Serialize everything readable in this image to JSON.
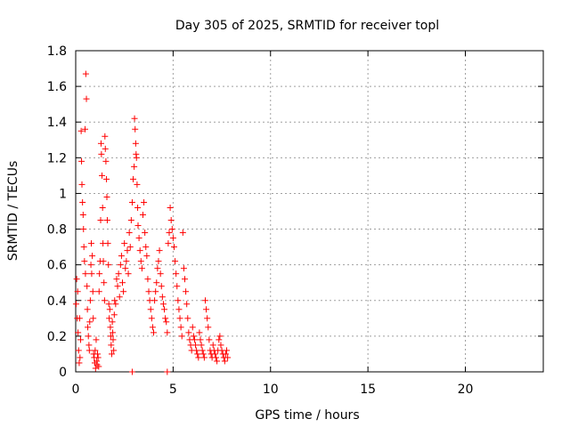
{
  "chart_data": {
    "type": "scatter",
    "title": "Day 305 of 2025, SRMTID for receiver topl",
    "xlabel": "GPS time / hours",
    "ylabel": "SRMTID / TECUs",
    "xlim": [
      0,
      24
    ],
    "ylim": [
      0,
      1.8
    ],
    "xticks": [
      0,
      5,
      10,
      15,
      20
    ],
    "xtick_labels": [
      "0",
      "5",
      "10",
      "15",
      "20"
    ],
    "yticks": [
      0,
      0.2,
      0.4,
      0.6,
      0.8,
      1,
      1.2,
      1.4,
      1.6,
      1.8
    ],
    "ytick_labels": [
      "0",
      "0.2",
      "0.4",
      "0.6",
      "0.8",
      "1",
      "1.2",
      "1.4",
      "1.6",
      "1.8"
    ],
    "grid": true,
    "marker": "plus",
    "color": "#ff0000",
    "series": [
      {
        "name": "SRMTID",
        "points": [
          [
            0.02,
            0.38
          ],
          [
            0.05,
            0.52
          ],
          [
            0.08,
            0.3
          ],
          [
            0.1,
            0.45
          ],
          [
            0.12,
            0.22
          ],
          [
            0.15,
            0.12
          ],
          [
            0.18,
            0.05
          ],
          [
            0.2,
            0.3
          ],
          [
            0.22,
            0.08
          ],
          [
            0.25,
            0.18
          ],
          [
            0.28,
            1.35
          ],
          [
            0.3,
            1.18
          ],
          [
            0.32,
            1.05
          ],
          [
            0.35,
            0.95
          ],
          [
            0.38,
            0.88
          ],
          [
            0.4,
            0.8
          ],
          [
            0.42,
            0.7
          ],
          [
            0.45,
            0.62
          ],
          [
            0.48,
            1.36
          ],
          [
            0.5,
            0.55
          ],
          [
            0.52,
            1.67
          ],
          [
            0.55,
            1.53
          ],
          [
            0.58,
            0.48
          ],
          [
            0.6,
            0.35
          ],
          [
            0.62,
            0.25
          ],
          [
            0.65,
            0.2
          ],
          [
            0.68,
            0.15
          ],
          [
            0.7,
            0.12
          ],
          [
            0.72,
            0.28
          ],
          [
            0.75,
            0.4
          ],
          [
            0.78,
            0.6
          ],
          [
            0.8,
            0.72
          ],
          [
            0.82,
            0.55
          ],
          [
            0.85,
            0.65
          ],
          [
            0.88,
            0.45
          ],
          [
            0.9,
            0.3
          ],
          [
            0.92,
            0.1
          ],
          [
            0.95,
            0.08
          ],
          [
            0.98,
            0.05
          ],
          [
            1.0,
            0.12
          ],
          [
            1.02,
            0.02
          ],
          [
            1.05,
            0.18
          ],
          [
            1.08,
            0.06
          ],
          [
            1.1,
            0.04
          ],
          [
            1.12,
            0.1
          ],
          [
            1.15,
            0.08
          ],
          [
            1.18,
            0.03
          ],
          [
            1.2,
            0.45
          ],
          [
            1.22,
            0.55
          ],
          [
            1.25,
            0.62
          ],
          [
            1.28,
            0.85
          ],
          [
            1.3,
            1.28
          ],
          [
            1.32,
            1.22
          ],
          [
            1.35,
            1.1
          ],
          [
            1.38,
            0.92
          ],
          [
            1.4,
            0.72
          ],
          [
            1.42,
            0.62
          ],
          [
            1.45,
            0.5
          ],
          [
            1.48,
            0.4
          ],
          [
            1.5,
            1.32
          ],
          [
            1.52,
            1.25
          ],
          [
            1.55,
            1.18
          ],
          [
            1.58,
            1.08
          ],
          [
            1.6,
            0.98
          ],
          [
            1.62,
            0.85
          ],
          [
            1.65,
            0.72
          ],
          [
            1.68,
            0.6
          ],
          [
            1.7,
            0.38
          ],
          [
            1.72,
            0.3
          ],
          [
            1.75,
            0.35
          ],
          [
            1.78,
            0.25
          ],
          [
            1.8,
            0.2
          ],
          [
            1.82,
            0.15
          ],
          [
            1.85,
            0.1
          ],
          [
            1.88,
            0.28
          ],
          [
            1.9,
            0.22
          ],
          [
            1.92,
            0.18
          ],
          [
            1.95,
            0.12
          ],
          [
            1.98,
            0.32
          ],
          [
            2.0,
            0.4
          ],
          [
            2.05,
            0.38
          ],
          [
            2.1,
            0.52
          ],
          [
            2.15,
            0.48
          ],
          [
            2.2,
            0.55
          ],
          [
            2.25,
            0.42
          ],
          [
            2.3,
            0.6
          ],
          [
            2.35,
            0.65
          ],
          [
            2.4,
            0.5
          ],
          [
            2.45,
            0.45
          ],
          [
            2.5,
            0.72
          ],
          [
            2.55,
            0.58
          ],
          [
            2.6,
            0.62
          ],
          [
            2.65,
            0.68
          ],
          [
            2.7,
            0.55
          ],
          [
            2.75,
            0.78
          ],
          [
            2.8,
            0.7
          ],
          [
            2.85,
            0.85
          ],
          [
            2.9,
            0.95
          ],
          [
            2.95,
            1.08
          ],
          [
            3.0,
            1.15
          ],
          [
            3.02,
            1.42
          ],
          [
            3.05,
            1.36
          ],
          [
            3.08,
            1.28
          ],
          [
            3.1,
            1.22
          ],
          [
            3.12,
            1.2
          ],
          [
            3.15,
            1.05
          ],
          [
            3.18,
            0.92
          ],
          [
            3.2,
            0.82
          ],
          [
            3.25,
            0.75
          ],
          [
            3.3,
            0.68
          ],
          [
            3.35,
            0.62
          ],
          [
            3.4,
            0.58
          ],
          [
            3.45,
            0.88
          ],
          [
            3.5,
            0.95
          ],
          [
            3.55,
            0.78
          ],
          [
            3.6,
            0.7
          ],
          [
            3.65,
            0.65
          ],
          [
            3.7,
            0.52
          ],
          [
            3.75,
            0.45
          ],
          [
            3.8,
            0.4
          ],
          [
            3.85,
            0.35
          ],
          [
            3.9,
            0.3
          ],
          [
            3.95,
            0.25
          ],
          [
            4.0,
            0.22
          ],
          [
            4.05,
            0.4
          ],
          [
            4.1,
            0.45
          ],
          [
            4.15,
            0.5
          ],
          [
            4.2,
            0.58
          ],
          [
            4.25,
            0.62
          ],
          [
            4.3,
            0.68
          ],
          [
            4.35,
            0.55
          ],
          [
            4.4,
            0.48
          ],
          [
            4.45,
            0.42
          ],
          [
            4.5,
            0.38
          ],
          [
            4.55,
            0.35
          ],
          [
            4.6,
            0.3
          ],
          [
            4.65,
            0.28
          ],
          [
            4.7,
            0.22
          ],
          [
            4.75,
            0.72
          ],
          [
            4.8,
            0.78
          ],
          [
            4.85,
            0.92
          ],
          [
            4.9,
            0.85
          ],
          [
            4.95,
            0.8
          ],
          [
            5.0,
            0.75
          ],
          [
            5.05,
            0.7
          ],
          [
            5.1,
            0.62
          ],
          [
            5.15,
            0.55
          ],
          [
            5.2,
            0.48
          ],
          [
            5.25,
            0.4
          ],
          [
            5.3,
            0.35
          ],
          [
            5.35,
            0.3
          ],
          [
            5.4,
            0.25
          ],
          [
            5.45,
            0.2
          ],
          [
            5.5,
            0.78
          ],
          [
            5.55,
            0.58
          ],
          [
            5.6,
            0.52
          ],
          [
            5.65,
            0.45
          ],
          [
            5.7,
            0.38
          ],
          [
            5.75,
            0.3
          ],
          [
            5.8,
            0.22
          ],
          [
            5.85,
            0.18
          ],
          [
            5.9,
            0.15
          ],
          [
            5.95,
            0.12
          ],
          [
            6.0,
            0.25
          ],
          [
            6.05,
            0.2
          ],
          [
            6.1,
            0.18
          ],
          [
            6.15,
            0.15
          ],
          [
            6.2,
            0.12
          ],
          [
            6.25,
            0.1
          ],
          [
            6.3,
            0.08
          ],
          [
            6.35,
            0.22
          ],
          [
            6.4,
            0.18
          ],
          [
            6.45,
            0.15
          ],
          [
            6.5,
            0.12
          ],
          [
            6.55,
            0.1
          ],
          [
            6.6,
            0.08
          ],
          [
            6.65,
            0.4
          ],
          [
            6.7,
            0.35
          ],
          [
            6.75,
            0.3
          ],
          [
            6.8,
            0.25
          ],
          [
            6.85,
            0.18
          ],
          [
            6.9,
            0.12
          ],
          [
            6.95,
            0.1
          ],
          [
            7.0,
            0.08
          ],
          [
            7.05,
            0.15
          ],
          [
            7.1,
            0.12
          ],
          [
            7.15,
            0.1
          ],
          [
            7.2,
            0.08
          ],
          [
            7.25,
            0.06
          ],
          [
            7.3,
            0.12
          ],
          [
            7.35,
            0.18
          ],
          [
            7.4,
            0.2
          ],
          [
            7.45,
            0.15
          ],
          [
            7.5,
            0.12
          ],
          [
            7.55,
            0.1
          ],
          [
            7.6,
            0.08
          ],
          [
            7.65,
            0.06
          ],
          [
            7.7,
            0.1
          ],
          [
            7.75,
            0.12
          ],
          [
            7.8,
            0.08
          ],
          [
            2.9,
            0.0
          ],
          [
            4.7,
            0.0
          ]
        ]
      }
    ]
  }
}
